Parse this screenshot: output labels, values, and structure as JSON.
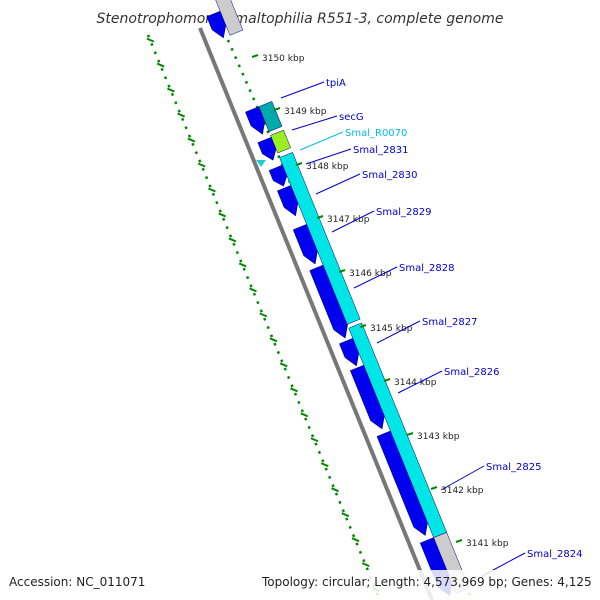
{
  "title": "Stenotrophomonas maltophilia R551-3, complete genome",
  "footer": {
    "accession": "Accession: NC_011071",
    "summary": "Topology: circular; Length: 4,573,969 bp; Genes: 4,125"
  },
  "colors": {
    "background": "#ffffff",
    "backbone": "#777777",
    "gene_blue": "#0000ee",
    "gene_cyan": "#00e6e6",
    "gene_teal": "#00aaaa",
    "gene_lime": "#99ee22",
    "tick_green": "#008800",
    "label_blue": "#0000cc",
    "label_cyan": "#00bbee"
  },
  "kbp_ticks": [
    {
      "label": "3150 kbp"
    },
    {
      "label": "3149 kbp"
    },
    {
      "label": "3148 kbp"
    },
    {
      "label": "3147 kbp"
    },
    {
      "label": "3146 kbp"
    },
    {
      "label": "3145 kbp"
    },
    {
      "label": "3144 kbp"
    },
    {
      "label": "3143 kbp"
    },
    {
      "label": "3142 kbp"
    },
    {
      "label": "3141 kbp"
    }
  ],
  "genes": [
    {
      "label": "tpiA",
      "color": "label_blue"
    },
    {
      "label": "secG",
      "color": "label_blue"
    },
    {
      "label": "Smal_R0070",
      "color": "label_cyan"
    },
    {
      "label": "Smal_2831",
      "color": "label_blue"
    },
    {
      "label": "Smal_2830",
      "color": "label_blue"
    },
    {
      "label": "Smal_2829",
      "color": "label_blue"
    },
    {
      "label": "Smal_2828",
      "color": "label_blue"
    },
    {
      "label": "Smal_2827",
      "color": "label_blue"
    },
    {
      "label": "Smal_2826",
      "color": "label_blue"
    },
    {
      "label": "Smal_2825",
      "color": "label_blue"
    },
    {
      "label": "Smal_2824",
      "color": "label_blue"
    }
  ]
}
